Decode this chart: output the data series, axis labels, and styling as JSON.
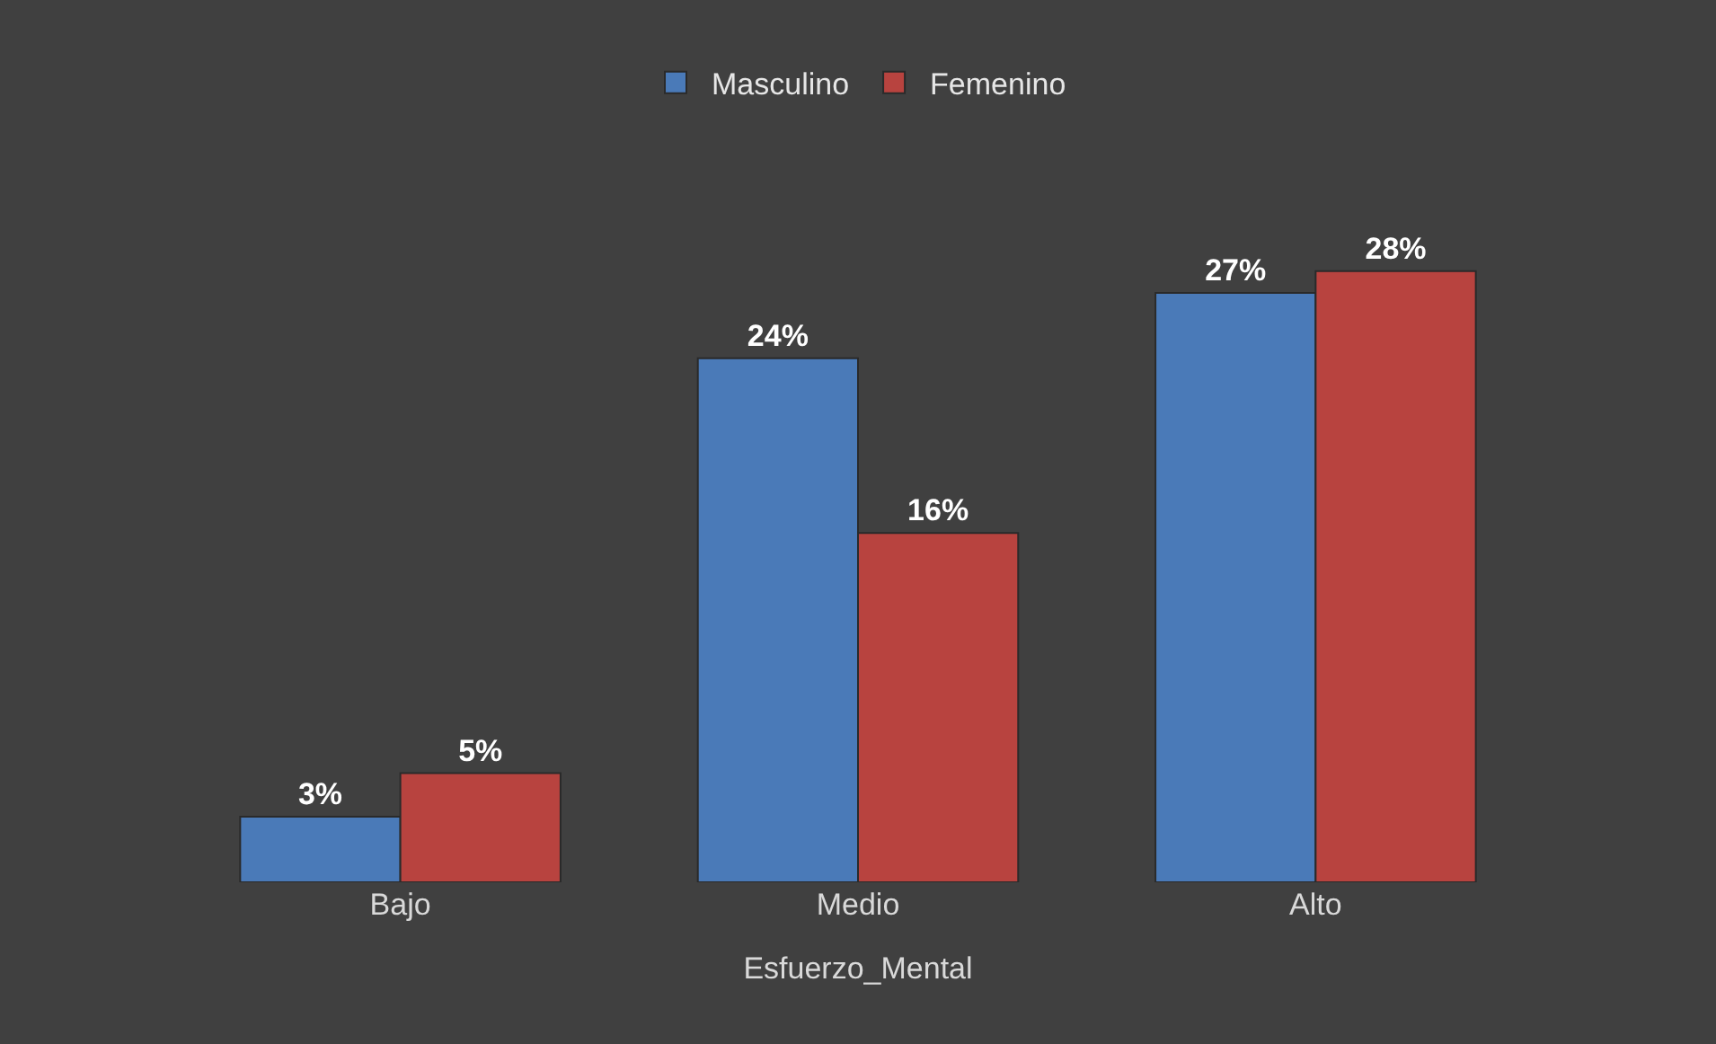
{
  "chart_data": {
    "type": "bar",
    "xlabel": "Esfuerzo_Mental",
    "categories": [
      "Bajo",
      "Medio",
      "Alto"
    ],
    "series": [
      {
        "name": "Masculino",
        "color": "#4a7ab8",
        "values": [
          3,
          24,
          27
        ],
        "value_labels": [
          "3%",
          "24%",
          "27%"
        ]
      },
      {
        "name": "Femenino",
        "color": "#b8433f",
        "values": [
          5,
          16,
          28
        ],
        "value_labels": [
          "5%",
          "16%",
          "28%"
        ]
      }
    ],
    "legend": "top"
  }
}
